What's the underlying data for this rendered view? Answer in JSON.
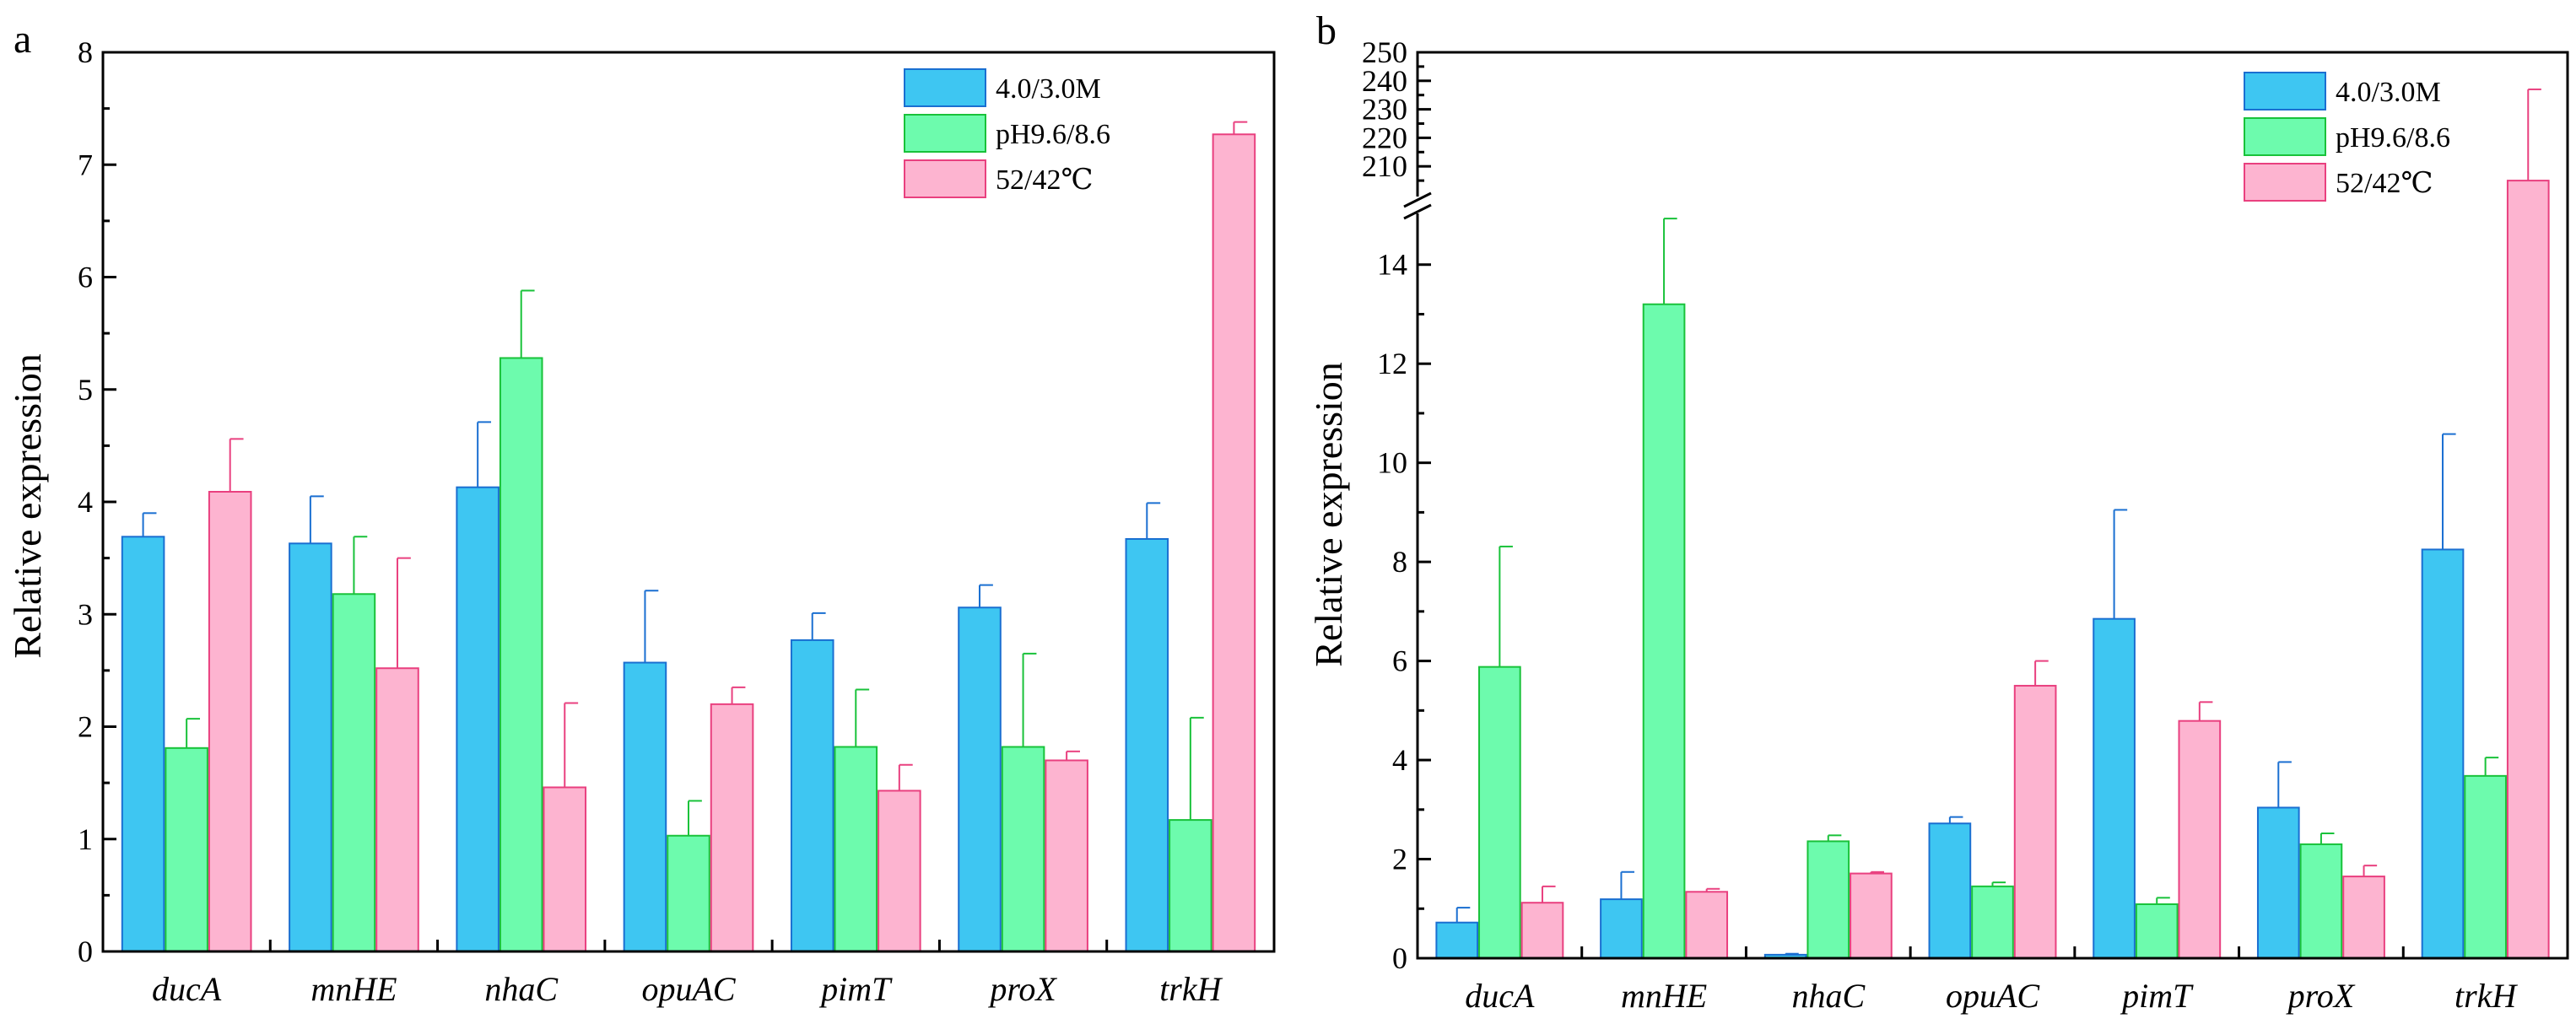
{
  "colors": {
    "series": [
      {
        "fill": "#3ec6f2",
        "stroke": "#1a6fd1"
      },
      {
        "fill": "#6dfbad",
        "stroke": "#19c23a"
      },
      {
        "fill": "#fdb4d0",
        "stroke": "#e9407f"
      }
    ]
  },
  "chart_data": [
    {
      "type": "bar",
      "panel_label": "a",
      "ylabel": "Relative expression",
      "categories": [
        "ducA",
        "mnHE",
        "nhaC",
        "opuAC",
        "pimT",
        "proX",
        "trkH"
      ],
      "ylim": [
        0,
        8
      ],
      "yticks": [
        "0",
        "1",
        "2",
        "3",
        "4",
        "5",
        "6",
        "7",
        "8"
      ],
      "legend_position": "top-right",
      "series": [
        {
          "name": "4.0/3.0M",
          "values": [
            3.69,
            3.63,
            4.13,
            2.57,
            2.77,
            3.06,
            3.67
          ],
          "errors": [
            0.21,
            0.42,
            0.58,
            0.64,
            0.24,
            0.2,
            0.32
          ]
        },
        {
          "name": "pH9.6/8.6",
          "values": [
            1.81,
            3.18,
            5.28,
            1.03,
            1.82,
            1.82,
            1.17
          ],
          "errors": [
            0.26,
            0.51,
            0.6,
            0.31,
            0.51,
            0.83,
            0.91
          ]
        },
        {
          "name": "52/42℃",
          "values": [
            4.09,
            2.52,
            1.46,
            2.2,
            1.43,
            1.7,
            7.27
          ],
          "errors": [
            0.47,
            0.98,
            0.75,
            0.15,
            0.23,
            0.08,
            0.11
          ]
        }
      ]
    },
    {
      "type": "bar",
      "panel_label": "b",
      "ylabel": "Relative expression",
      "categories": [
        "ducA",
        "mnHE",
        "nhaC",
        "opuAC",
        "pimT",
        "proX",
        "trkH"
      ],
      "ylim": [
        0,
        15
      ],
      "yticks": [
        "0",
        "2",
        "4",
        "6",
        "8",
        "10",
        "12",
        "14"
      ],
      "axis_break": {
        "lower_max": 15,
        "upper_range": [
          200,
          250
        ],
        "upper_ticks": [
          "210",
          "220",
          "230",
          "240",
          "250"
        ]
      },
      "legend_position": "top-right",
      "series": [
        {
          "name": "4.0/3.0M",
          "values": [
            0.72,
            1.19,
            0.07,
            2.72,
            6.85,
            3.04,
            8.25
          ],
          "errors": [
            0.3,
            0.55,
            0.02,
            0.13,
            2.2,
            0.92,
            2.33
          ]
        },
        {
          "name": "pH9.6/8.6",
          "values": [
            5.88,
            13.2,
            2.36,
            1.45,
            1.09,
            2.3,
            3.68
          ],
          "errors": [
            2.43,
            1.73,
            0.12,
            0.08,
            0.13,
            0.22,
            0.37
          ]
        },
        {
          "name": "52/42℃",
          "values": [
            1.12,
            1.34,
            1.71,
            5.5,
            4.79,
            1.65,
            205
          ],
          "errors": [
            0.33,
            0.06,
            0.03,
            0.5,
            0.38,
            0.22,
            32
          ]
        }
      ]
    }
  ]
}
